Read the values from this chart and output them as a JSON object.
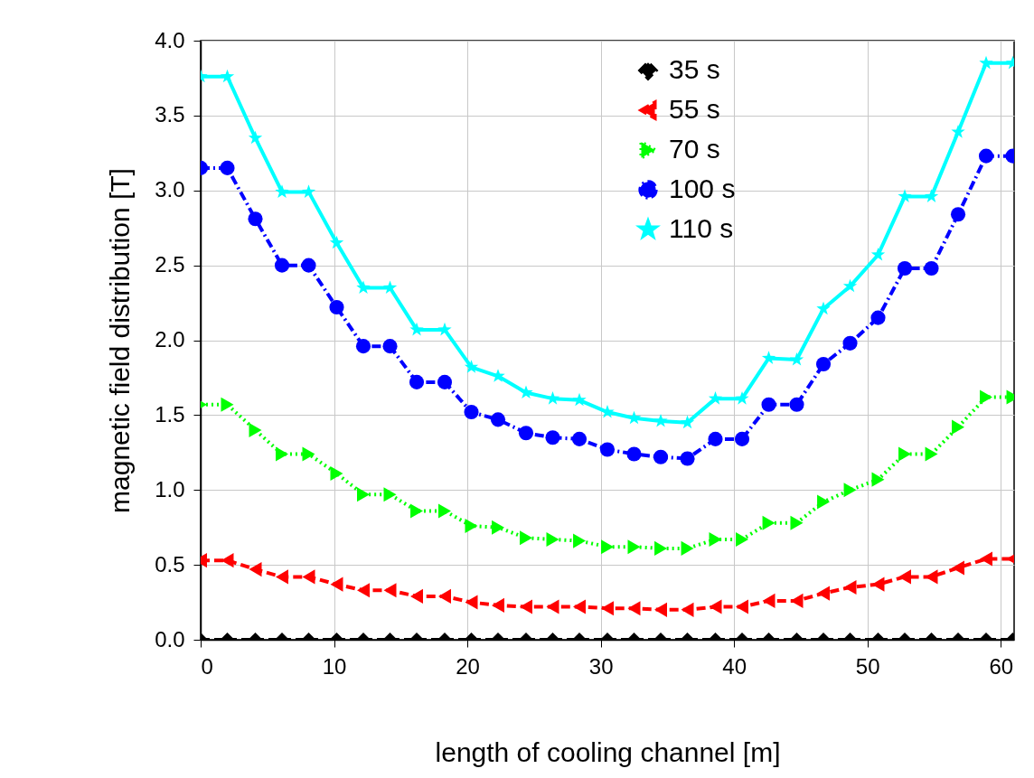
{
  "chart_data": {
    "type": "line",
    "xlabel": "length of cooling channel [m]",
    "ylabel": "magnetic field distribution [T]",
    "x": [
      0,
      2,
      4.1,
      6.1,
      8.1,
      10.2,
      12.2,
      14.2,
      16.2,
      18.3,
      20.3,
      22.3,
      24.4,
      26.4,
      28.4,
      30.5,
      32.5,
      34.5,
      36.5,
      38.6,
      40.6,
      42.6,
      44.7,
      46.7,
      48.7,
      50.8,
      52.8,
      54.8,
      56.8,
      58.9,
      60.9
    ],
    "series": [
      {
        "name": "35 s",
        "color": "#000000",
        "marker": "diamond",
        "line_style": "dashed",
        "values": [
          0,
          0,
          0,
          0,
          0,
          0,
          0,
          0,
          0,
          0,
          0,
          0,
          0,
          0,
          0,
          0,
          0,
          0,
          0,
          0,
          0,
          0,
          0,
          0,
          0,
          0,
          0,
          0,
          0,
          0,
          0
        ]
      },
      {
        "name": "55 s",
        "color": "#ff0000",
        "marker": "triangle-left",
        "line_style": "dashed",
        "values": [
          0.53,
          0.53,
          0.47,
          0.42,
          0.42,
          0.37,
          0.33,
          0.33,
          0.29,
          0.29,
          0.25,
          0.23,
          0.22,
          0.22,
          0.22,
          0.21,
          0.21,
          0.2,
          0.2,
          0.22,
          0.22,
          0.26,
          0.26,
          0.31,
          0.35,
          0.37,
          0.42,
          0.42,
          0.48,
          0.54,
          0.54
        ]
      },
      {
        "name": "70 s",
        "color": "#00ff00",
        "marker": "triangle-right",
        "line_style": "dotted",
        "values": [
          1.57,
          1.57,
          1.4,
          1.24,
          1.24,
          1.11,
          0.97,
          0.97,
          0.86,
          0.86,
          0.76,
          0.75,
          0.68,
          0.67,
          0.66,
          0.62,
          0.62,
          0.61,
          0.61,
          0.67,
          0.67,
          0.78,
          0.78,
          0.92,
          1.0,
          1.07,
          1.24,
          1.24,
          1.42,
          1.62,
          1.62
        ]
      },
      {
        "name": "100 s",
        "color": "#0000ff",
        "marker": "circle",
        "line_style": "dashdot",
        "values": [
          3.15,
          3.15,
          2.81,
          2.5,
          2.5,
          2.22,
          1.96,
          1.96,
          1.72,
          1.72,
          1.52,
          1.47,
          1.38,
          1.35,
          1.34,
          1.27,
          1.24,
          1.22,
          1.21,
          1.34,
          1.34,
          1.57,
          1.57,
          1.84,
          1.98,
          2.15,
          2.48,
          2.48,
          2.84,
          3.23,
          3.23
        ]
      },
      {
        "name": "110 s",
        "color": "#00ffff",
        "marker": "star",
        "line_style": "solid",
        "values": [
          3.76,
          3.76,
          3.35,
          2.99,
          2.99,
          2.65,
          2.35,
          2.35,
          2.07,
          2.07,
          1.82,
          1.76,
          1.65,
          1.61,
          1.6,
          1.52,
          1.48,
          1.46,
          1.45,
          1.61,
          1.61,
          1.88,
          1.87,
          2.21,
          2.36,
          2.57,
          2.96,
          2.96,
          3.39,
          3.85,
          3.85
        ]
      }
    ],
    "xlim": [
      0,
      61
    ],
    "xticks": [
      0,
      10,
      20,
      30,
      40,
      50,
      60
    ],
    "ylim": [
      0,
      4
    ],
    "yticks": [
      {
        "value": 0,
        "label": "0.0"
      },
      0.5,
      {
        "value": 1,
        "label": "1.0"
      },
      1.5,
      {
        "value": 2,
        "label": "2.0"
      },
      2.5,
      {
        "value": 3,
        "label": "3.0"
      },
      3.5,
      {
        "value": 4,
        "label": "4.0"
      }
    ],
    "grid": true,
    "legend": "top right"
  }
}
